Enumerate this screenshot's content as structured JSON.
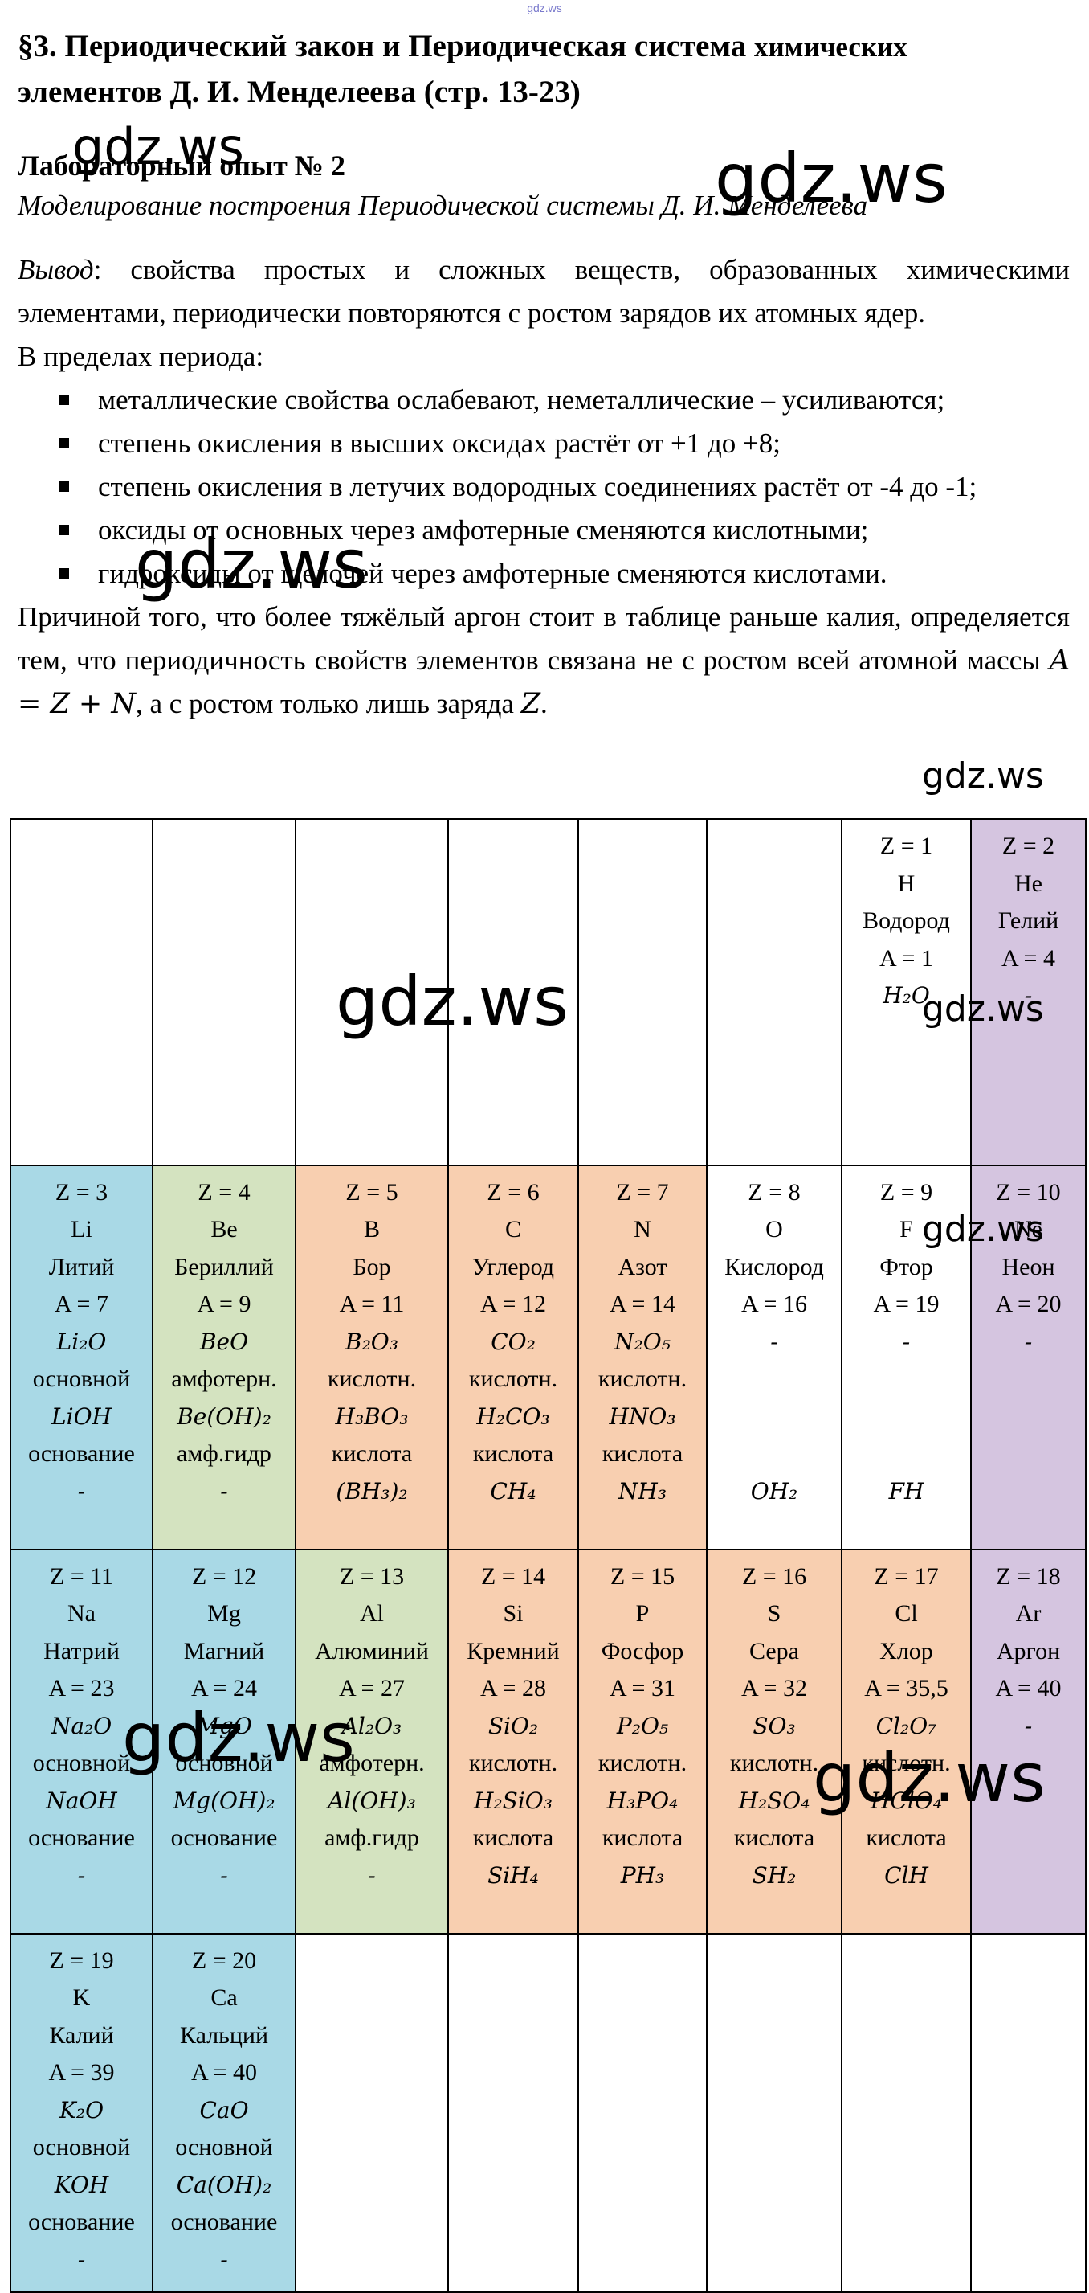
{
  "top_mark": "gdz.ws",
  "title": {
    "main": "§3. Периодический закон и Периодическая система",
    "small": "химических",
    "line2": "элементов Д. И. Менделеева (стр. 13-23)"
  },
  "lab": {
    "title": "Лабораторный опыт № 2",
    "subtitle": "Моделирование построения Периодической системы Д. И. Менделеева"
  },
  "conclusion": {
    "label": "Вывод",
    "text": ": свойства простых и сложных веществ, образованных химическими элементами, периодически повторяются с ростом зарядов их атомных ядер.",
    "period_intro": "В пределах периода:",
    "bullets": [
      "металлические свойства ослабевают, неметаллические – усиливаются;",
      "степень окисления в высших оксидах растёт от +1 до +8;",
      "степень окисления в летучих водородных соединениях растёт от -4 до -1;",
      "оксиды от основных через амфотерные сменяются кислотными;",
      "гидроксиды от щелочей через амфотерные сменяются кислотами."
    ],
    "argon_text_1": "Причиной того, что более тяжёлый аргон стоит в таблице раньше калия, определяется тем, что периодичность свойств элементов связана не с ростом всей атомной массы ",
    "argon_formula": "A = Z + N",
    "argon_text_2": ", а с ростом только лишь заряда ",
    "argon_z": "Z",
    "argon_text_3": "."
  },
  "table": {
    "rows": [
      [
        {
          "type": "empty"
        },
        {
          "type": "empty"
        },
        {
          "type": "empty"
        },
        {
          "type": "empty"
        },
        {
          "type": "empty"
        },
        {
          "type": "empty"
        },
        {
          "type": "w",
          "z": "Z = 1",
          "sym": "H",
          "name": "Водород",
          "mass": "A = 1",
          "oxide": "H₂O",
          "oxide_type": "",
          "hydroxide": "",
          "hydroxide_type": "",
          "hydride": ""
        },
        {
          "type": "n",
          "z": "Z = 2",
          "sym": "He",
          "name": "Гелий",
          "mass": "A = 4",
          "oxide": "-",
          "oxide_type": "",
          "hydroxide": "",
          "hydroxide_type": "",
          "hydride": ""
        }
      ],
      [
        {
          "type": "s",
          "z": "Z = 3",
          "sym": "Li",
          "name": "Литий",
          "mass": "A = 7",
          "oxide": "Li₂O",
          "oxide_type": "основной",
          "hydroxide": "LiOH",
          "hydroxide_type": "основание",
          "hydride": "-"
        },
        {
          "type": "a",
          "z": "Z = 4",
          "sym": "Be",
          "name": "Бериллий",
          "mass": "A = 9",
          "oxide": "BeO",
          "oxide_type": "амфотерн.",
          "hydroxide": "Be(OH)₂",
          "hydroxide_type": "амф.гидр",
          "hydride": "-"
        },
        {
          "type": "p",
          "z": "Z = 5",
          "sym": "B",
          "name": "Бор",
          "mass": "A = 11",
          "oxide": "B₂O₃",
          "oxide_type": "кислотн.",
          "hydroxide": "H₃BO₃",
          "hydroxide_type": "кислота",
          "hydride": "(BH₃)₂"
        },
        {
          "type": "p",
          "z": "Z = 6",
          "sym": "C",
          "name": "Углерод",
          "mass": "A = 12",
          "oxide": "CO₂",
          "oxide_type": "кислотн.",
          "hydroxide": "H₂CO₃",
          "hydroxide_type": "кислота",
          "hydride": "CH₄"
        },
        {
          "type": "p",
          "z": "Z = 7",
          "sym": "N",
          "name": "Азот",
          "mass": "A = 14",
          "oxide": "N₂O₅",
          "oxide_type": "кислотн.",
          "hydroxide": "HNO₃",
          "hydroxide_type": "кислота",
          "hydride": "NH₃"
        },
        {
          "type": "w",
          "z": "Z = 8",
          "sym": "O",
          "name": "Кислород",
          "mass": "A = 16",
          "oxide": "-",
          "oxide_type": "",
          "hydroxide": "",
          "hydroxide_type": "",
          "hydride": "OH₂"
        },
        {
          "type": "w",
          "z": "Z = 9",
          "sym": "F",
          "name": "Фтор",
          "mass": "A = 19",
          "oxide": "-",
          "oxide_type": "",
          "hydroxide": "",
          "hydroxide_type": "",
          "hydride": "FH"
        },
        {
          "type": "n",
          "z": "Z = 10",
          "sym": "Ne",
          "name": "Неон",
          "mass": "A = 20",
          "oxide": "-",
          "oxide_type": "",
          "hydroxide": "",
          "hydroxide_type": "",
          "hydride": ""
        }
      ],
      [
        {
          "type": "s",
          "z": "Z = 11",
          "sym": "Na",
          "name": "Натрий",
          "mass": "A = 23",
          "oxide": "Na₂O",
          "oxide_type": "основной",
          "hydroxide": "NaOH",
          "hydroxide_type": "основание",
          "hydride": "-"
        },
        {
          "type": "s",
          "z": "Z = 12",
          "sym": "Mg",
          "name": "Магний",
          "mass": "A = 24",
          "oxide": "MgO",
          "oxide_type": "основной",
          "hydroxide": "Mg(OH)₂",
          "hydroxide_type": "основание",
          "hydride": "-"
        },
        {
          "type": "a",
          "z": "Z = 13",
          "sym": "Al",
          "name": "Алюминий",
          "mass": "A = 27",
          "oxide": "Al₂O₃",
          "oxide_type": "амфотерн.",
          "hydroxide": "Al(OH)₃",
          "hydroxide_type": "амф.гидр",
          "hydride": "-"
        },
        {
          "type": "p",
          "z": "Z = 14",
          "sym": "Si",
          "name": "Кремний",
          "mass": "A = 28",
          "oxide": "SiO₂",
          "oxide_type": "кислотн.",
          "hydroxide": "H₂SiO₃",
          "hydroxide_type": "кислота",
          "hydride": "SiH₄"
        },
        {
          "type": "p",
          "z": "Z = 15",
          "sym": "P",
          "name": "Фосфор",
          "mass": "A = 31",
          "oxide": "P₂O₅",
          "oxide_type": "кислотн.",
          "hydroxide": "H₃PO₄",
          "hydroxide_type": "кислота",
          "hydride": "PH₃"
        },
        {
          "type": "p",
          "z": "Z = 16",
          "sym": "S",
          "name": "Сера",
          "mass": "A = 32",
          "oxide": "SO₃",
          "oxide_type": "кислотн.",
          "hydroxide": "H₂SO₄",
          "hydroxide_type": "кислота",
          "hydride": "SH₂"
        },
        {
          "type": "p",
          "z": "Z = 17",
          "sym": "Cl",
          "name": "Хлор",
          "mass": "A = 35,5",
          "oxide": "Cl₂O₇",
          "oxide_type": "кислотн.",
          "hydroxide": "HClO₄",
          "hydroxide_type": "кислота",
          "hydride": "ClH"
        },
        {
          "type": "n",
          "z": "Z = 18",
          "sym": "Ar",
          "name": "Аргон",
          "mass": "A = 40",
          "oxide": "-",
          "oxide_type": "",
          "hydroxide": "",
          "hydroxide_type": "",
          "hydride": ""
        }
      ],
      [
        {
          "type": "s",
          "z": "Z = 19",
          "sym": "K",
          "name": "Калий",
          "mass": "A = 39",
          "oxide": "K₂O",
          "oxide_type": "основной",
          "hydroxide": "KOH",
          "hydroxide_type": "основание",
          "hydride": "-"
        },
        {
          "type": "s",
          "z": "Z = 20",
          "sym": "Ca",
          "name": "Кальций",
          "mass": "A = 40",
          "oxide": "CaO",
          "oxide_type": "основной",
          "hydroxide": "Ca(OH)₂",
          "hydroxide_type": "основание",
          "hydride": "-"
        },
        {
          "type": "empty"
        },
        {
          "type": "empty"
        },
        {
          "type": "empty"
        },
        {
          "type": "empty"
        },
        {
          "type": "empty"
        },
        {
          "type": "empty"
        }
      ]
    ],
    "colors": {
      "s": "#a9d9e6",
      "a": "#d4e3c0",
      "p": "#f8cfb0",
      "n": "#d5c5e0",
      "w": "#ffffff"
    }
  },
  "watermarks": [
    "gdz.ws",
    "gdz.ws",
    "gdz.ws",
    "gdz.ws",
    "gdz.ws",
    "gdz.ws",
    "gdz.ws",
    "gdz.ws",
    "gdz.ws"
  ]
}
